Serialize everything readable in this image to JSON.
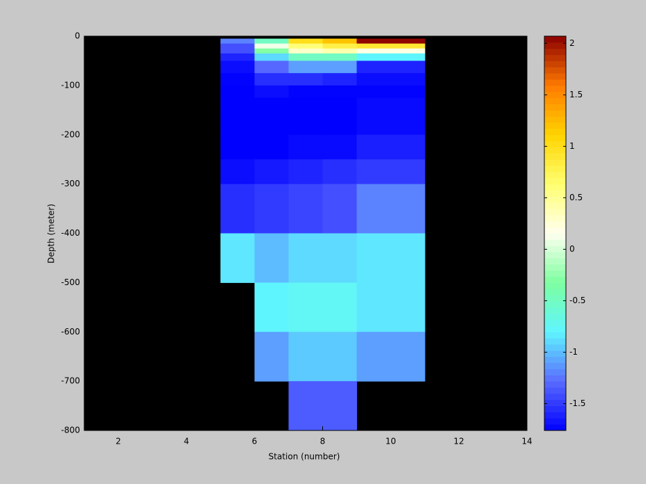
{
  "chart_data": {
    "type": "heatmap",
    "x_label": "Station (number)",
    "y_label": "Depth (meter)",
    "x_edges": [
      5,
      6,
      7,
      8,
      9,
      11
    ],
    "y_edges": [
      -5,
      -15,
      -25,
      -35,
      -50,
      -75,
      -100,
      -125,
      -150,
      -200,
      -250,
      -300,
      -400,
      -500,
      -600,
      -700,
      -800
    ],
    "z": [
      [
        -1.2,
        -0.5,
        1.0,
        1.2,
        2.05
      ],
      [
        -1.4,
        0.1,
        0.6,
        0.8,
        0.9
      ],
      [
        -1.4,
        -0.3,
        0.3,
        0.4,
        0.2
      ],
      [
        -1.6,
        -0.9,
        -0.5,
        -0.5,
        -0.8
      ],
      [
        -1.7,
        -1.3,
        -1.1,
        -1.1,
        -1.6
      ],
      [
        -1.75,
        -1.55,
        -1.55,
        -1.6,
        -1.7
      ],
      [
        -1.76,
        -1.7,
        -1.75,
        -1.75,
        -1.75
      ],
      [
        -1.76,
        -1.76,
        -1.76,
        -1.76,
        -1.72
      ],
      [
        -1.76,
        -1.76,
        -1.76,
        -1.76,
        -1.72
      ],
      [
        -1.76,
        -1.76,
        -1.72,
        -1.72,
        -1.62
      ],
      [
        -1.7,
        -1.65,
        -1.6,
        -1.55,
        -1.5
      ],
      [
        -1.55,
        -1.5,
        -1.45,
        -1.4,
        -1.2
      ],
      [
        -0.85,
        -1.0,
        -0.9,
        -0.9,
        -0.85
      ],
      [
        null,
        -0.8,
        -0.75,
        -0.75,
        -0.85
      ],
      [
        null,
        -1.1,
        -0.95,
        -0.95,
        -1.1
      ],
      [
        null,
        null,
        -1.35,
        -1.35,
        null
      ]
    ],
    "xlim": [
      1,
      14
    ],
    "xticks": [
      2,
      4,
      6,
      8,
      10,
      12,
      14
    ],
    "ylim": [
      -800,
      0
    ],
    "yticks": [
      0,
      -100,
      -200,
      -300,
      -400,
      -500,
      -600,
      -700,
      -800
    ],
    "clim": [
      -1.76,
      2.07
    ],
    "cticks": [
      -1.5,
      -1,
      -0.5,
      0,
      0.5,
      1,
      1.5,
      2
    ],
    "colormap": [
      "#0000ff",
      "#5a6bff",
      "#5ff5ff",
      "#7dffa0",
      "#fffff0",
      "#ffff70",
      "#ffd400",
      "#ff7a00",
      "#8b0000"
    ],
    "background": "#000000"
  }
}
